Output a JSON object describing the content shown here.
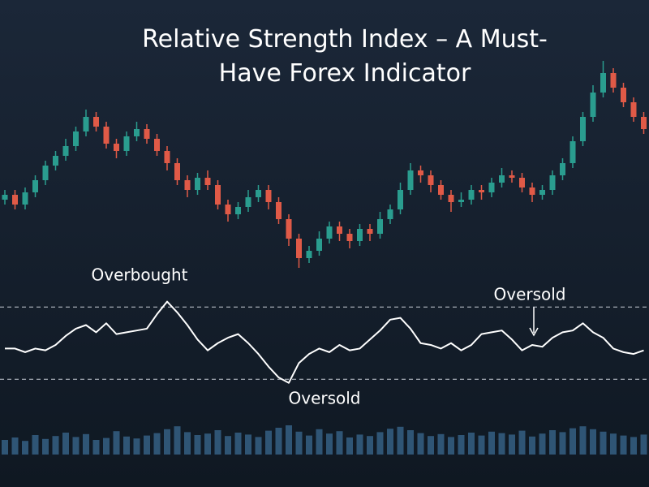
{
  "chart_data": [
    {
      "type": "candlestick",
      "title": "Relative Strength Index – A Must-Have Forex Indicator",
      "open": [
        38,
        40,
        36,
        41,
        46,
        52,
        56,
        60,
        66,
        72,
        68,
        61,
        58,
        64,
        67,
        63,
        58,
        53,
        46,
        42,
        47,
        44,
        36,
        32,
        35,
        39,
        42,
        37,
        30,
        22,
        14,
        17,
        22,
        27,
        24,
        21,
        26,
        24,
        30,
        34,
        42,
        50,
        48,
        44,
        40,
        37,
        38,
        42,
        41,
        45,
        48,
        47,
        43,
        40,
        42,
        48,
        53,
        62,
        72,
        82,
        90,
        84,
        78,
        72
      ],
      "high": [
        42,
        42,
        43,
        48,
        54,
        58,
        63,
        68,
        75,
        74,
        70,
        63,
        66,
        70,
        69,
        65,
        60,
        55,
        48,
        49,
        50,
        46,
        38,
        37,
        42,
        44,
        44,
        39,
        32,
        24,
        19,
        25,
        29,
        29,
        26,
        28,
        28,
        33,
        36,
        45,
        53,
        52,
        50,
        46,
        42,
        41,
        44,
        44,
        47,
        51,
        50,
        49,
        45,
        44,
        50,
        55,
        64,
        74,
        85,
        95,
        92,
        86,
        80,
        74
      ],
      "low": [
        36,
        34,
        34,
        39,
        44,
        50,
        54,
        58,
        64,
        66,
        59,
        55,
        56,
        62,
        61,
        56,
        50,
        44,
        39,
        40,
        42,
        34,
        29,
        30,
        33,
        37,
        34,
        28,
        19,
        10,
        12,
        15,
        20,
        21,
        18,
        19,
        21,
        22,
        28,
        32,
        40,
        45,
        41,
        38,
        33,
        35,
        36,
        38,
        39,
        43,
        45,
        41,
        37,
        38,
        40,
        46,
        51,
        60,
        70,
        80,
        82,
        76,
        70,
        65
      ],
      "close": [
        40,
        36,
        41,
        46,
        52,
        56,
        60,
        66,
        72,
        68,
        61,
        58,
        64,
        67,
        63,
        58,
        53,
        46,
        42,
        47,
        44,
        36,
        32,
        35,
        39,
        42,
        37,
        30,
        22,
        14,
        17,
        22,
        27,
        24,
        21,
        26,
        24,
        30,
        34,
        42,
        50,
        48,
        44,
        40,
        37,
        38,
        42,
        41,
        45,
        48,
        47,
        43,
        40,
        42,
        48,
        53,
        62,
        72,
        82,
        90,
        84,
        78,
        72,
        67
      ],
      "up_color": "#2a9d8f",
      "down_color": "#e05a47",
      "ylim": [
        0,
        100
      ]
    },
    {
      "type": "line",
      "values": [
        47,
        47,
        45,
        47,
        46,
        49,
        54,
        58,
        60,
        56,
        61,
        55,
        56,
        57,
        58,
        66,
        73,
        67,
        60,
        52,
        46,
        50,
        53,
        55,
        50,
        44,
        37,
        31,
        28,
        39,
        44,
        47,
        45,
        49,
        46,
        47,
        52,
        57,
        63,
        64,
        58,
        50,
        49,
        47,
        50,
        46,
        49,
        55,
        56,
        57,
        52,
        46,
        49,
        48,
        53,
        56,
        57,
        61,
        56,
        53,
        47,
        45,
        44,
        46
      ],
      "color": "#ffffff",
      "ylim": [
        0,
        100
      ],
      "reference_lines": [
        70,
        30
      ],
      "annotations": [
        "Overbought",
        "Oversold",
        "Oversold"
      ]
    },
    {
      "type": "bar",
      "values": [
        30,
        35,
        28,
        40,
        32,
        38,
        45,
        36,
        42,
        30,
        34,
        48,
        37,
        33,
        39,
        44,
        52,
        58,
        46,
        40,
        43,
        50,
        38,
        45,
        41,
        36,
        49,
        55,
        60,
        47,
        39,
        52,
        43,
        48,
        35,
        41,
        38,
        46,
        53,
        57,
        50,
        44,
        38,
        42,
        36,
        40,
        45,
        39,
        47,
        44,
        41,
        49,
        37,
        43,
        50,
        46,
        54,
        58,
        52,
        47,
        43,
        39,
        36,
        41
      ],
      "color": "#2f5575",
      "ylim": [
        0,
        100
      ]
    }
  ]
}
